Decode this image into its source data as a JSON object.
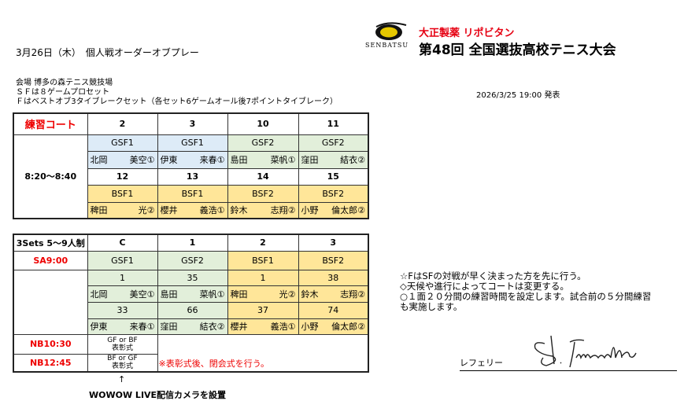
{
  "header": {
    "title": "3月26日（木）　個人戦オーダーオブプレー",
    "published": "2026/3/25 19:00 発表",
    "sponsor": "大正製薬 リポビタン",
    "event": "第48回 全国選抜高校テニス大会",
    "logo_text": "SENBATSU"
  },
  "info": [
    "会場 博多の森テニス競技場",
    "ＳＦは８ゲームプロセット",
    "Ｆはベストオブ3タイブレークセット（各セット6ゲームオール後7ポイントタイブレーク）"
  ],
  "practice": {
    "label": "練習コート",
    "time": "8:20～8:40",
    "courts_top": [
      "2",
      "3",
      "10",
      "11"
    ],
    "events_top": [
      "GSF1",
      "GSF1",
      "GSF2",
      "GSF2"
    ],
    "names_top": [
      [
        "北岡",
        "美空①"
      ],
      [
        "伊東",
        "来春①"
      ],
      [
        "島田",
        "菜帆①"
      ],
      [
        "窪田",
        "結衣②"
      ]
    ],
    "courts_bottom": [
      "12",
      "13",
      "14",
      "15"
    ],
    "events_bottom": [
      "BSF1",
      "BSF1",
      "BSF2",
      "BSF2"
    ],
    "names_bottom": [
      [
        "稗田",
        "光②"
      ],
      [
        "櫻井",
        "義浩①"
      ],
      [
        "鈴木",
        "志翔②"
      ],
      [
        "小野",
        "倫太郎②"
      ]
    ]
  },
  "matches": {
    "label": "3Sets 5～9人制",
    "courts": [
      "C",
      "1",
      "2",
      "3"
    ],
    "start": "SA9:00",
    "events": [
      "GSF1",
      "GSF2",
      "BSF1",
      "BSF2"
    ],
    "seeds1": [
      "1",
      "35",
      "1",
      "38"
    ],
    "names1": [
      [
        "北岡",
        "美空①"
      ],
      [
        "島田",
        "菜帆①"
      ],
      [
        "稗田",
        "光②"
      ],
      [
        "鈴木",
        "志翔②"
      ]
    ],
    "seeds2": [
      "33",
      "66",
      "37",
      "74"
    ],
    "names2": [
      [
        "伊東",
        "来春①"
      ],
      [
        "窪田",
        "結衣②"
      ],
      [
        "櫻井",
        "義浩①"
      ],
      [
        "小野",
        "倫太郎②"
      ]
    ],
    "nb1": {
      "time": "NB10:30",
      "line1": "GF or BF",
      "line2": "表彰式"
    },
    "nb2": {
      "time": "NB12:45",
      "line1": "BF or GF",
      "line2": "表彰式"
    },
    "closing": "※表彰式後、閉会式を行う。"
  },
  "camera": {
    "arrow": "↑",
    "text": "WOWOW LIVE配信カメラを設置"
  },
  "notes": [
    "☆FはSFの対戦が早く決まった方を先に行う。",
    "◇天候や進行によってコートは変更する。",
    "○１面２０分間の練習時間を設定します。試合前の５分間練習",
    "も実施します。"
  ],
  "referee": {
    "label": "レフェリー"
  },
  "colors": {
    "blue": "#ddebf7",
    "green": "#e2efda",
    "yellow": "#ffe699",
    "red": "#e00000"
  }
}
